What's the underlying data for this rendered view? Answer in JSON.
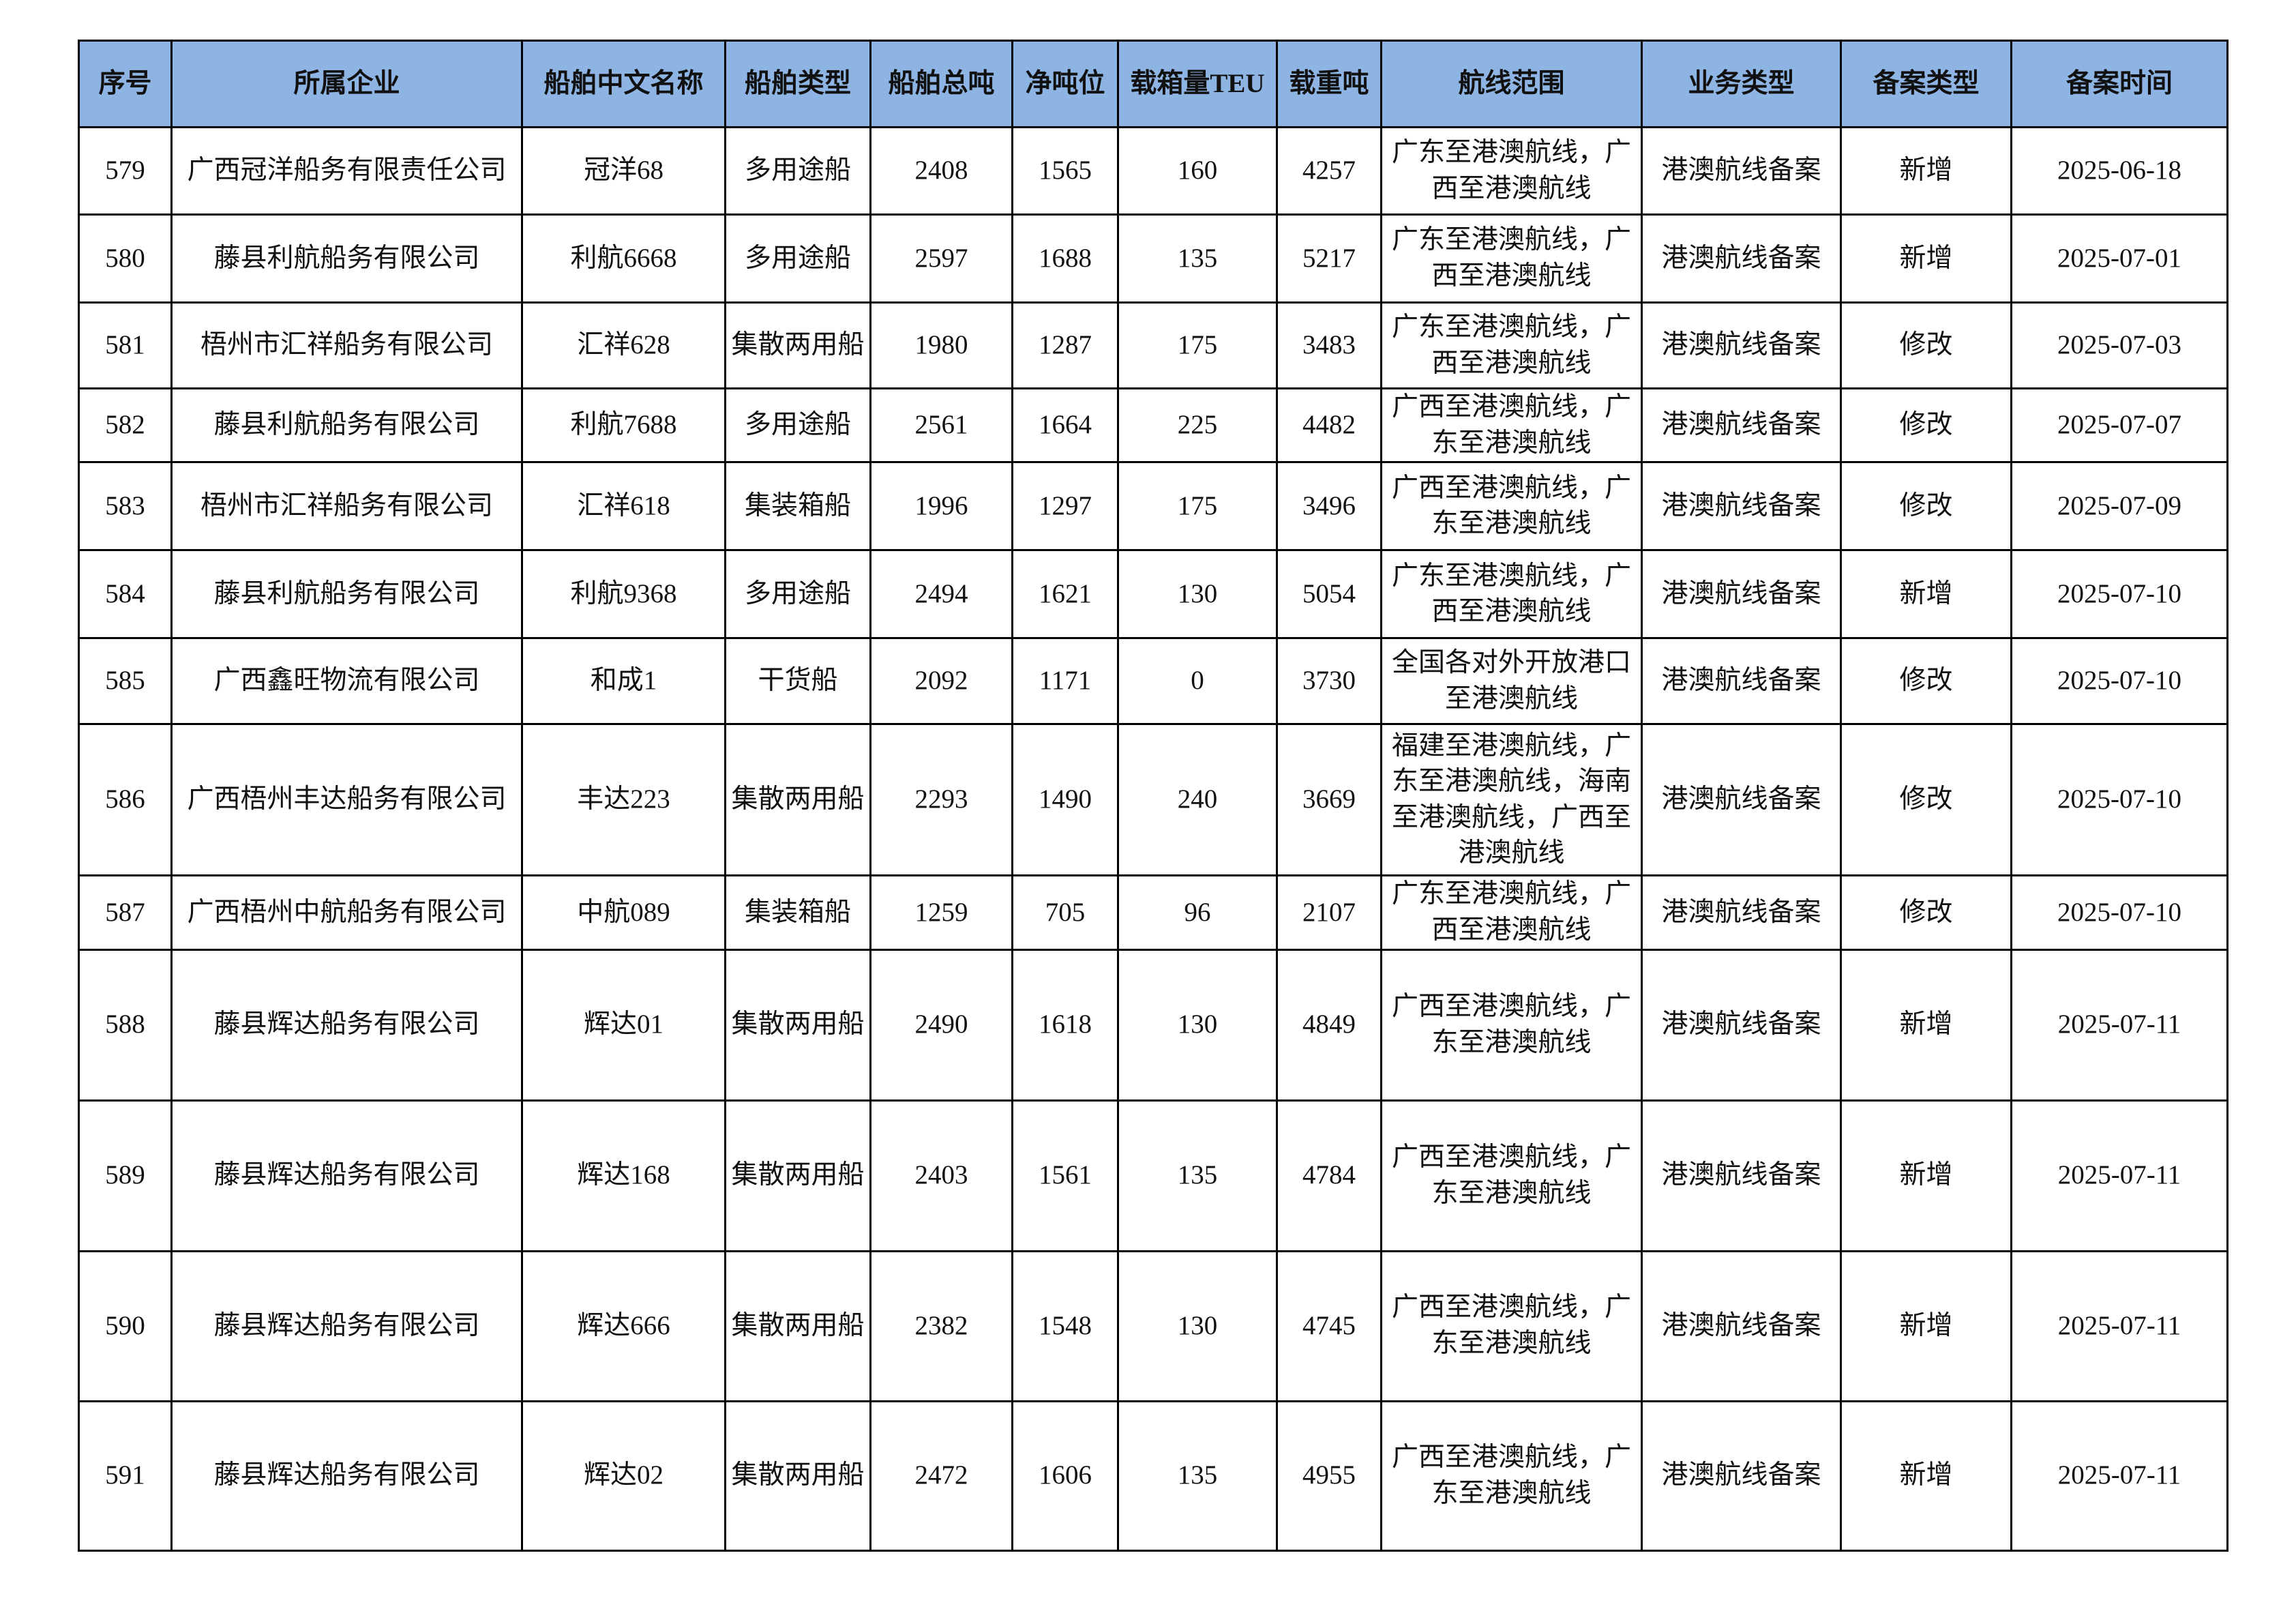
{
  "header_color": "#8eb4e3",
  "columns": [
    "序号",
    "所属企业",
    "船舶中文名称",
    "船舶类型",
    "船舶总吨",
    "净吨位",
    "载箱量TEU",
    "载重吨",
    "航线范围",
    "业务类型",
    "备案类型",
    "备案时间"
  ],
  "rows": [
    [
      "579",
      "广西冠洋船务有限责任公司",
      "冠洋68",
      "多用途船",
      "2408",
      "1565",
      "160",
      "4257",
      "广东至港澳航线，广西至港澳航线",
      "港澳航线备案",
      "新增",
      "2025-06-18"
    ],
    [
      "580",
      "藤县利航船务有限公司",
      "利航6668",
      "多用途船",
      "2597",
      "1688",
      "135",
      "5217",
      "广东至港澳航线，广西至港澳航线",
      "港澳航线备案",
      "新增",
      "2025-07-01"
    ],
    [
      "581",
      "梧州市汇祥船务有限公司",
      "汇祥628",
      "集散两用船",
      "1980",
      "1287",
      "175",
      "3483",
      "广东至港澳航线，广西至港澳航线",
      "港澳航线备案",
      "修改",
      "2025-07-03"
    ],
    [
      "582",
      "藤县利航船务有限公司",
      "利航7688",
      "多用途船",
      "2561",
      "1664",
      "225",
      "4482",
      "广西至港澳航线，广东至港澳航线",
      "港澳航线备案",
      "修改",
      "2025-07-07"
    ],
    [
      "583",
      "梧州市汇祥船务有限公司",
      "汇祥618",
      "集装箱船",
      "1996",
      "1297",
      "175",
      "3496",
      "广西至港澳航线，广东至港澳航线",
      "港澳航线备案",
      "修改",
      "2025-07-09"
    ],
    [
      "584",
      "藤县利航船务有限公司",
      "利航9368",
      "多用途船",
      "2494",
      "1621",
      "130",
      "5054",
      "广东至港澳航线，广西至港澳航线",
      "港澳航线备案",
      "新增",
      "2025-07-10"
    ],
    [
      "585",
      "广西鑫旺物流有限公司",
      "和成1",
      "干货船",
      "2092",
      "1171",
      "0",
      "3730",
      "全国各对外开放港口至港澳航线",
      "港澳航线备案",
      "修改",
      "2025-07-10"
    ],
    [
      "586",
      "广西梧州丰达船务有限公司",
      "丰达223",
      "集散两用船",
      "2293",
      "1490",
      "240",
      "3669",
      "福建至港澳航线，广东至港澳航线，海南至港澳航线，广西至港澳航线",
      "港澳航线备案",
      "修改",
      "2025-07-10"
    ],
    [
      "587",
      "广西梧州中航船务有限公司",
      "中航089",
      "集装箱船",
      "1259",
      "705",
      "96",
      "2107",
      "广东至港澳航线，广西至港澳航线",
      "港澳航线备案",
      "修改",
      "2025-07-10"
    ],
    [
      "588",
      "藤县辉达船务有限公司",
      "辉达01",
      "集散两用船",
      "2490",
      "1618",
      "130",
      "4849",
      "广西至港澳航线，广东至港澳航线",
      "港澳航线备案",
      "新增",
      "2025-07-11"
    ],
    [
      "589",
      "藤县辉达船务有限公司",
      "辉达168",
      "集散两用船",
      "2403",
      "1561",
      "135",
      "4784",
      "广西至港澳航线，广东至港澳航线",
      "港澳航线备案",
      "新增",
      "2025-07-11"
    ],
    [
      "590",
      "藤县辉达船务有限公司",
      "辉达666",
      "集散两用船",
      "2382",
      "1548",
      "130",
      "4745",
      "广西至港澳航线，广东至港澳航线",
      "港澳航线备案",
      "新增",
      "2025-07-11"
    ],
    [
      "591",
      "藤县辉达船务有限公司",
      "辉达02",
      "集散两用船",
      "2472",
      "1606",
      "135",
      "4955",
      "广西至港澳航线，广东至港澳航线",
      "港澳航线备案",
      "新增",
      "2025-07-11"
    ]
  ]
}
